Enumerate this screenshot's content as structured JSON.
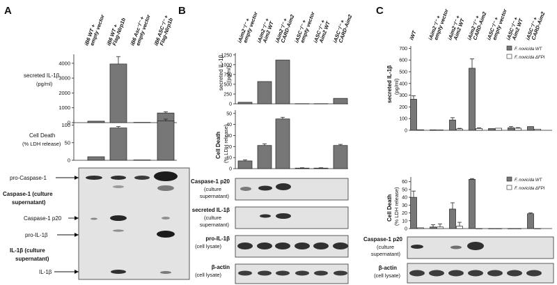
{
  "panels": {
    "A": {
      "letter": "A",
      "lanes": [
        [
          "iB6 WT +",
          "empty vector"
        ],
        [
          "iB6 WT +",
          "Flag-Nlrp1b"
        ],
        [
          "iB6 Asc⁻/⁻ +",
          "empty vector"
        ],
        [
          "iB6 ASC⁻/⁻ +",
          "Flag-Nlrp1b"
        ]
      ],
      "chart1_label": [
        "secreted IL-1β",
        "(pg/ml)"
      ],
      "chart2_label": [
        "Cell Death",
        "(% LDH release)"
      ],
      "blot_labels": {
        "pro_casp": "pro-Caspase-1",
        "casp_sup": [
          "Caspase-1 (culture",
          "supernatant)"
        ],
        "casp_p20": "Caspase-1 p20",
        "pro_il": "pro-IL-1β",
        "il_sup": [
          "IL-1β (culture",
          "supernatant)"
        ],
        "il": "IL-1β"
      }
    },
    "B": {
      "letter": "B",
      "lanes": [
        [
          "iAim2⁻/⁻ +",
          "empty vector"
        ],
        [
          "iAim2⁻/⁻ +",
          "Aim2 WT"
        ],
        [
          "iAim2⁻/⁻ +",
          "CARD-Aim2"
        ],
        [
          "iASC⁻/⁻ +",
          "empty vector"
        ],
        [
          "iASC⁻/⁻ +",
          "Aim2 WT"
        ],
        [
          "iASC⁻/⁻ +",
          "CARD-Aim2"
        ]
      ],
      "chart1_label": [
        "secreted IL-1β",
        "(pg/ml)"
      ],
      "chart2_label": [
        "Cell Death",
        "(% LDH release)"
      ],
      "blots": [
        [
          "Caspase-1 p20",
          "(culture",
          "supernatant)"
        ],
        [
          "secreted IL-1β",
          "(culture",
          "supernatant)"
        ],
        [
          "pro-IL-1β",
          "(cell lysate)"
        ],
        [
          "β-actin",
          "(cell lysate)"
        ]
      ]
    },
    "C": {
      "letter": "C",
      "lanes": [
        [
          "iWT",
          ""
        ],
        [
          "iAim2⁻/⁻ +",
          "empty vector"
        ],
        [
          "iAim2⁻/⁻ +",
          "Aim2 WT"
        ],
        [
          "iAim2⁻/⁻ +",
          "CARD-Aim2"
        ],
        [
          "iASC⁻/⁻ +",
          "empty vector"
        ],
        [
          "iASC⁻/⁻ +",
          "Aim2 WT"
        ],
        [
          "iASC⁻/⁻ +",
          "CARD-Aim2"
        ]
      ],
      "chart1_label": [
        "secreted IL-1β",
        "(pg/ml)"
      ],
      "chart2_label": [
        "Cell Death",
        "(% LDH release)"
      ],
      "legend": [
        "F. novicida WT",
        "F. novicida ΔFPI"
      ],
      "blots": [
        [
          "Caspase-1 p20",
          "(culture",
          "supernatant)"
        ],
        [
          "β-actin",
          "(cell lysate)"
        ]
      ]
    }
  },
  "chart_data": [
    {
      "type": "bar",
      "panel": "A",
      "ylabel": "secreted IL-1β (pg/ml)",
      "yticks": [
        0,
        1000,
        2000,
        3000,
        4000
      ],
      "ylim": [
        0,
        4600
      ],
      "categories": [
        "iB6 WT + empty vector",
        "iB6 WT + Flag-Nlrp1b",
        "iB6 Asc-/- + empty vector",
        "iB6 ASC-/- + Flag-Nlrp1b"
      ],
      "values": [
        100,
        3950,
        20,
        650
      ],
      "errors": [
        0,
        500,
        0,
        80
      ]
    },
    {
      "type": "bar",
      "panel": "A",
      "ylabel": "Cell Death (% LDH release)",
      "yticks": [
        0,
        50,
        100
      ],
      "ylim": [
        0,
        115
      ],
      "categories": [
        "iB6 WT + empty vector",
        "iB6 WT + Flag-Nlrp1b",
        "iB6 Asc-/- + empty vector",
        "iB6 ASC-/- + Flag-Nlrp1b"
      ],
      "values": [
        10,
        92,
        1,
        112
      ],
      "errors": [
        0,
        4,
        0,
        5
      ]
    },
    {
      "type": "bar",
      "panel": "B",
      "ylabel": "secreted IL-1β (pg/ml)",
      "yticks": [
        0,
        250,
        500,
        750,
        1000,
        1250
      ],
      "ylim": [
        0,
        1300
      ],
      "categories": [
        "iAim2-/- + empty vector",
        "iAim2-/- + Aim2 WT",
        "iAim2-/- + CARD-Aim2",
        "iASC-/- + empty vector",
        "iASC-/- + Aim2 WT",
        "iASC-/- + CARD-Aim2"
      ],
      "values": [
        40,
        570,
        1120,
        5,
        5,
        140
      ],
      "errors": [
        0,
        0,
        0,
        0,
        0,
        0
      ]
    },
    {
      "type": "bar",
      "panel": "B",
      "ylabel": "Cell Death (% LDH release)",
      "yticks": [
        0,
        10,
        20,
        30,
        40,
        50
      ],
      "ylim": [
        0,
        53
      ],
      "categories": [
        "iAim2-/- + empty vector",
        "iAim2-/- + Aim2 WT",
        "iAim2-/- + CARD-Aim2",
        "iASC-/- + empty vector",
        "iASC-/- + Aim2 WT",
        "iASC-/- + CARD-Aim2"
      ],
      "values": [
        7,
        21,
        45,
        0.5,
        0.5,
        21
      ],
      "errors": [
        1,
        1.5,
        1.5,
        0.3,
        0.3,
        1
      ]
    },
    {
      "type": "bar",
      "panel": "C",
      "ylabel": "secreted IL-1β (pg/ml)",
      "yticks": [
        0,
        100,
        200,
        300,
        400,
        500,
        600,
        700
      ],
      "ylim": [
        0,
        720
      ],
      "legend_position": "top-right",
      "categories": [
        "iWT",
        "iAim2-/- + empty vector",
        "iAim2-/- + Aim2 WT",
        "iAim2-/- + CARD-Aim2",
        "iASC-/- + empty vector",
        "iASC-/- + Aim2 WT",
        "iASC-/- + CARD-Aim2"
      ],
      "series": [
        {
          "name": "F. novicida WT",
          "values": [
            265,
            4,
            88,
            530,
            15,
            22,
            32
          ],
          "errors": [
            30,
            0,
            20,
            80,
            0,
            10,
            0
          ]
        },
        {
          "name": "F. novicida ΔFPI",
          "values": [
            5,
            3,
            12,
            16,
            18,
            18,
            10
          ],
          "errors": [
            0,
            0,
            5,
            5,
            0,
            5,
            0
          ]
        }
      ]
    },
    {
      "type": "bar",
      "panel": "C",
      "ylabel": "Cell Death (% LDH release)",
      "yticks": [
        0,
        10,
        20,
        30,
        40,
        50,
        60
      ],
      "ylim": [
        0,
        66
      ],
      "legend_position": "top-right",
      "categories": [
        "iWT",
        "iAim2-/- + empty vector",
        "iAim2-/- + Aim2 WT",
        "iAim2-/- + CARD-Aim2",
        "iASC-/- + empty vector",
        "iASC-/- + Aim2 WT",
        "iASC-/- + CARD-Aim2"
      ],
      "series": [
        {
          "name": "F. novicida WT",
          "values": [
            40,
            2,
            25,
            63,
            0,
            0,
            19
          ],
          "errors": [
            8,
            3,
            8,
            1,
            0,
            0,
            1
          ]
        },
        {
          "name": "F. novicida ΔFPI",
          "values": [
            1,
            2,
            3,
            0,
            0,
            0,
            0
          ],
          "errors": [
            0,
            4,
            5,
            0,
            0,
            0,
            0
          ]
        }
      ]
    }
  ]
}
